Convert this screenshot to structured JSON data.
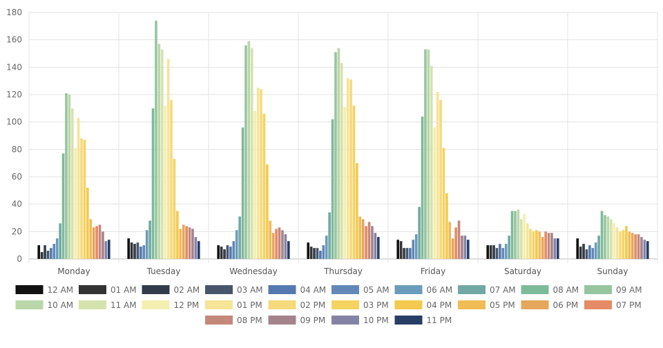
{
  "chart_data": {
    "type": "bar",
    "title": "",
    "xlabel": "",
    "ylabel": "",
    "ylim": [
      0,
      180
    ],
    "yticks": [
      0,
      20,
      40,
      60,
      80,
      100,
      120,
      140,
      160,
      180
    ],
    "grid": true,
    "legend_position": "bottom",
    "categories": [
      "Monday",
      "Tuesday",
      "Wednesday",
      "Thursday",
      "Friday",
      "Saturday",
      "Sunday"
    ],
    "series": [
      {
        "name": "12 AM",
        "color": "#111111",
        "values": [
          10,
          15,
          10,
          12,
          14,
          10,
          15
        ]
      },
      {
        "name": "01 AM",
        "color": "#333333",
        "values": [
          5,
          12,
          9,
          9,
          13,
          10,
          9
        ]
      },
      {
        "name": "02 AM",
        "color": "#333c4a",
        "values": [
          10,
          11,
          7,
          8,
          8,
          10,
          11
        ]
      },
      {
        "name": "03 AM",
        "color": "#48566b",
        "values": [
          6,
          12,
          10,
          8,
          8,
          8,
          7
        ]
      },
      {
        "name": "04 AM",
        "color": "#5479b0",
        "values": [
          8,
          9,
          9,
          6,
          8,
          11,
          10
        ]
      },
      {
        "name": "05 AM",
        "color": "#6188b8",
        "values": [
          11,
          10,
          13,
          10,
          14,
          8,
          8
        ]
      },
      {
        "name": "06 AM",
        "color": "#6b9cbb",
        "values": [
          15,
          21,
          21,
          17,
          18,
          11,
          12
        ]
      },
      {
        "name": "07 AM",
        "color": "#72a8a4",
        "values": [
          26,
          28,
          31,
          34,
          38,
          17,
          17
        ]
      },
      {
        "name": "08 AM",
        "color": "#7dba9a",
        "values": [
          77,
          110,
          96,
          102,
          104,
          35,
          35
        ]
      },
      {
        "name": "09 AM",
        "color": "#97c5a0",
        "values": [
          121,
          174,
          156,
          151,
          153,
          35,
          32
        ]
      },
      {
        "name": "10 AM",
        "color": "#b9d7a8",
        "values": [
          120,
          157,
          159,
          154,
          153,
          36,
          31
        ]
      },
      {
        "name": "11 AM",
        "color": "#d6e2ae",
        "values": [
          110,
          153,
          154,
          143,
          141,
          29,
          29
        ]
      },
      {
        "name": "12 PM",
        "color": "#f4efb1",
        "values": [
          81,
          112,
          108,
          111,
          96,
          33,
          26
        ]
      },
      {
        "name": "01 PM",
        "color": "#f6e497",
        "values": [
          103,
          146,
          125,
          132,
          122,
          26,
          23
        ]
      },
      {
        "name": "02 PM",
        "color": "#f5da7b",
        "values": [
          88,
          116,
          124,
          131,
          116,
          22,
          20
        ]
      },
      {
        "name": "03 PM",
        "color": "#f5d361",
        "values": [
          87,
          73,
          106,
          112,
          81,
          20,
          21
        ]
      },
      {
        "name": "04 PM",
        "color": "#f3c94e",
        "values": [
          52,
          35,
          69,
          70,
          48,
          21,
          24
        ]
      },
      {
        "name": "05 PM",
        "color": "#f0bc55",
        "values": [
          29,
          22,
          28,
          31,
          27,
          20,
          20
        ]
      },
      {
        "name": "06 PM",
        "color": "#e6a65c",
        "values": [
          23,
          25,
          19,
          29,
          15,
          16,
          19
        ]
      },
      {
        "name": "07 PM",
        "color": "#e58b66",
        "values": [
          24,
          24,
          22,
          24,
          23,
          20,
          18
        ]
      },
      {
        "name": "08 PM",
        "color": "#c4887a",
        "values": [
          25,
          23,
          23,
          27,
          28,
          19,
          18
        ]
      },
      {
        "name": "09 PM",
        "color": "#a5838d",
        "values": [
          20,
          22,
          21,
          24,
          17,
          19,
          16
        ]
      },
      {
        "name": "10 PM",
        "color": "#8583a5",
        "values": [
          13,
          16,
          18,
          19,
          17,
          15,
          14
        ]
      },
      {
        "name": "11 PM",
        "color": "#273e66",
        "values": [
          14,
          13,
          13,
          16,
          14,
          15,
          13
        ]
      }
    ]
  }
}
